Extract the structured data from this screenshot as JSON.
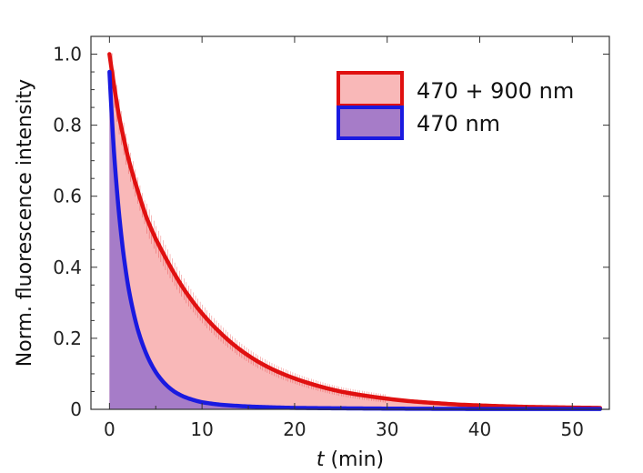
{
  "chart_data": {
    "type": "area",
    "xlabel_italic": "t",
    "xlabel_rest": " (min)",
    "ylabel": "Norm. fluorescence intensity",
    "xlim": [
      -2,
      54
    ],
    "ylim": [
      0,
      1.05
    ],
    "xticks": [
      0,
      10,
      20,
      30,
      40,
      50
    ],
    "xtick_labels": [
      "0",
      "10",
      "20",
      "30",
      "40",
      "50"
    ],
    "yticks": [
      0,
      0.2,
      0.4,
      0.6,
      0.8,
      1.0
    ],
    "ytick_labels": [
      "0",
      "0.2",
      "0.4",
      "0.6",
      "0.8",
      "1.0"
    ],
    "legend_position": "top-right",
    "series": [
      {
        "name": "470 + 900 nm",
        "line_color": "#e01010",
        "fill_color": "#f9b8b8",
        "error_bars": true,
        "x": [
          0,
          1,
          2,
          3,
          4,
          5,
          6,
          8,
          10,
          12,
          14,
          16,
          18,
          20,
          22,
          25,
          28,
          30,
          32,
          35,
          38,
          40,
          45,
          50,
          53
        ],
        "y": [
          1.0,
          0.83,
          0.71,
          0.62,
          0.54,
          0.48,
          0.43,
          0.34,
          0.27,
          0.215,
          0.17,
          0.135,
          0.108,
          0.087,
          0.07,
          0.05,
          0.037,
          0.03,
          0.024,
          0.018,
          0.013,
          0.011,
          0.007,
          0.005,
          0.004
        ]
      },
      {
        "name": "470 nm",
        "line_color": "#1a1ae0",
        "fill_color": "#a67cc8",
        "error_bars": false,
        "x": [
          0,
          0.5,
          1,
          1.5,
          2,
          3,
          4,
          5,
          6,
          7,
          8,
          10,
          12,
          15,
          20,
          30,
          40,
          53
        ],
        "y": [
          0.95,
          0.72,
          0.56,
          0.44,
          0.35,
          0.23,
          0.155,
          0.105,
          0.072,
          0.05,
          0.036,
          0.02,
          0.013,
          0.008,
          0.004,
          0.002,
          0.001,
          0.001
        ]
      }
    ]
  }
}
